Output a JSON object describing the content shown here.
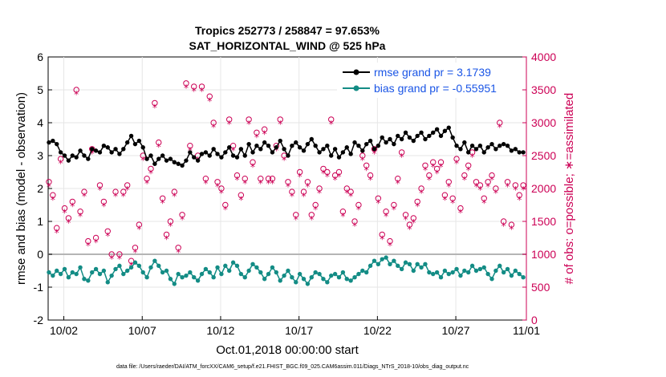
{
  "chart_data": {
    "type": "line",
    "title": "Tropics 252773 / 258847 = 97.653%",
    "subtitle": "SAT_HORIZONTAL_WIND @ 525 hPa",
    "xlabel": "Oct.01,2018 00:00:00 start",
    "ylabel": "rmse and bias (model - observation)",
    "ylabel_right": "# of obs: o=possible; ∗=assimilated",
    "xlim": [
      0.5,
      31.0
    ],
    "ylim": [
      -2,
      6
    ],
    "ylim_right": [
      0,
      4000
    ],
    "x_ticks": [
      1.5,
      6.5,
      11.5,
      16.5,
      21.5,
      26.5,
      31.0
    ],
    "x_tick_labels": [
      "10/02",
      "10/07",
      "10/12",
      "10/17",
      "10/22",
      "10/27",
      "11/01"
    ],
    "y_ticks": [
      "-2",
      "-1",
      "0",
      "1",
      "2",
      "3",
      "4",
      "5",
      "6"
    ],
    "y_ticks_right": [
      "0",
      "500",
      "1000",
      "1500",
      "2000",
      "2500",
      "3000",
      "3500",
      "4000"
    ],
    "zero_line": 0,
    "footer": "data file: /Users/raeder/DAI/ATM_forcXX/CAM6_setup/f.e21.FHIST_BGC.f09_025.CAM6assim.011/Diags_NTrS_2018-10/obs_diag_output.nc",
    "series": [
      {
        "name": "rmse",
        "legend": "rmse grand pr = 3.1739",
        "color": "#000000",
        "marker": "dot",
        "x": [
          0.55,
          0.8,
          1.05,
          1.3,
          1.55,
          1.8,
          2.05,
          2.3,
          2.55,
          2.8,
          3.05,
          3.3,
          3.55,
          3.8,
          4.05,
          4.3,
          4.55,
          4.8,
          5.05,
          5.3,
          5.55,
          5.8,
          6.05,
          6.3,
          6.55,
          6.8,
          7.05,
          7.3,
          7.55,
          7.8,
          8.05,
          8.3,
          8.55,
          8.8,
          9.05,
          9.3,
          9.55,
          9.8,
          10.05,
          10.3,
          10.55,
          10.8,
          11.05,
          11.3,
          11.55,
          11.8,
          12.05,
          12.3,
          12.55,
          12.8,
          13.05,
          13.3,
          13.55,
          13.8,
          14.05,
          14.3,
          14.55,
          14.8,
          15.05,
          15.3,
          15.55,
          15.8,
          16.05,
          16.3,
          16.55,
          16.8,
          17.05,
          17.3,
          17.55,
          17.8,
          18.05,
          18.3,
          18.55,
          18.8,
          19.05,
          19.3,
          19.55,
          19.8,
          20.05,
          20.3,
          20.55,
          20.8,
          21.05,
          21.3,
          21.55,
          21.8,
          22.05,
          22.3,
          22.55,
          22.8,
          23.05,
          23.3,
          23.55,
          23.8,
          24.05,
          24.3,
          24.55,
          24.8,
          25.05,
          25.3,
          25.55,
          25.8,
          26.05,
          26.3,
          26.55,
          26.8,
          27.05,
          27.3,
          27.55,
          27.8,
          28.05,
          28.3,
          28.55,
          28.8,
          29.05,
          29.3,
          29.55,
          29.8,
          30.05,
          30.3,
          30.55,
          30.8
        ],
        "values": [
          3.4,
          3.45,
          3.35,
          3.1,
          3.0,
          2.85,
          3.0,
          2.95,
          3.15,
          3.0,
          2.9,
          3.2,
          3.15,
          3.1,
          3.3,
          3.25,
          3.1,
          3.2,
          3.05,
          3.2,
          3.4,
          3.6,
          3.35,
          3.45,
          3.25,
          2.9,
          3.0,
          2.75,
          2.9,
          3.0,
          2.85,
          2.9,
          2.8,
          2.75,
          2.7,
          2.85,
          3.1,
          2.95,
          2.85,
          3.05,
          3.1,
          3.0,
          3.2,
          3.05,
          2.95,
          3.1,
          3.25,
          3.0,
          2.95,
          3.2,
          3.0,
          3.35,
          3.1,
          3.3,
          3.2,
          3.4,
          3.3,
          3.1,
          3.25,
          3.45,
          3.2,
          3.0,
          3.3,
          3.4,
          3.25,
          3.15,
          3.35,
          3.5,
          3.3,
          3.1,
          3.2,
          3.3,
          3.0,
          3.2,
          2.95,
          3.1,
          3.25,
          3.05,
          3.4,
          3.3,
          3.15,
          3.35,
          3.45,
          3.2,
          3.3,
          3.55,
          3.4,
          3.5,
          3.35,
          3.6,
          3.5,
          3.7,
          3.55,
          3.45,
          3.6,
          3.7,
          3.5,
          3.6,
          3.7,
          3.8,
          3.6,
          3.75,
          3.85,
          3.55,
          3.3,
          3.2,
          3.4,
          3.1,
          3.3,
          3.2,
          3.3,
          3.1,
          3.25,
          3.35,
          3.2,
          3.3,
          3.35,
          3.3,
          3.15,
          3.2,
          3.1,
          3.1
        ]
      },
      {
        "name": "bias",
        "legend": "bias grand pr = -0.55951",
        "color": "#138c85",
        "marker": "dot",
        "x": [
          0.55,
          0.8,
          1.05,
          1.3,
          1.55,
          1.8,
          2.05,
          2.3,
          2.55,
          2.8,
          3.05,
          3.3,
          3.55,
          3.8,
          4.05,
          4.3,
          4.55,
          4.8,
          5.05,
          5.3,
          5.55,
          5.8,
          6.05,
          6.3,
          6.55,
          6.8,
          7.05,
          7.3,
          7.55,
          7.8,
          8.05,
          8.3,
          8.55,
          8.8,
          9.05,
          9.3,
          9.55,
          9.8,
          10.05,
          10.3,
          10.55,
          10.8,
          11.05,
          11.3,
          11.55,
          11.8,
          12.05,
          12.3,
          12.55,
          12.8,
          13.05,
          13.3,
          13.55,
          13.8,
          14.05,
          14.3,
          14.55,
          14.8,
          15.05,
          15.3,
          15.55,
          15.8,
          16.05,
          16.3,
          16.55,
          16.8,
          17.05,
          17.3,
          17.55,
          17.8,
          18.05,
          18.3,
          18.55,
          18.8,
          19.05,
          19.3,
          19.55,
          19.8,
          20.05,
          20.3,
          20.55,
          20.8,
          21.05,
          21.3,
          21.55,
          21.8,
          22.05,
          22.3,
          22.55,
          22.8,
          23.05,
          23.3,
          23.55,
          23.8,
          24.05,
          24.3,
          24.55,
          24.8,
          25.05,
          25.3,
          25.55,
          25.8,
          26.05,
          26.3,
          26.55,
          26.8,
          27.05,
          27.3,
          27.55,
          27.8,
          28.05,
          28.3,
          28.55,
          28.8,
          29.05,
          29.3,
          29.55,
          29.8,
          30.05,
          30.3,
          30.55,
          30.8
        ],
        "values": [
          -0.55,
          -0.65,
          -0.5,
          -0.6,
          -0.45,
          -0.7,
          -0.55,
          -0.6,
          -0.4,
          -0.75,
          -0.8,
          -0.55,
          -0.45,
          -0.6,
          -0.5,
          -0.85,
          -0.65,
          -0.45,
          -0.35,
          -0.6,
          -0.5,
          -0.4,
          -0.25,
          -0.35,
          -0.55,
          -0.7,
          -0.4,
          -0.2,
          -0.35,
          -0.55,
          -0.5,
          -0.75,
          -0.9,
          -0.6,
          -0.7,
          -0.65,
          -0.55,
          -0.7,
          -0.8,
          -0.6,
          -0.45,
          -0.55,
          -0.7,
          -0.4,
          -0.6,
          -0.35,
          -0.5,
          -0.25,
          -0.35,
          -0.6,
          -0.7,
          -0.5,
          -0.3,
          -0.4,
          -0.55,
          -0.75,
          -0.6,
          -0.4,
          -0.55,
          -0.8,
          -0.65,
          -0.5,
          -0.7,
          -0.85,
          -0.6,
          -0.75,
          -0.9,
          -0.7,
          -0.55,
          -0.6,
          -0.75,
          -0.85,
          -0.65,
          -0.6,
          -0.7,
          -0.55,
          -0.75,
          -0.8,
          -0.7,
          -0.6,
          -0.5,
          -0.55,
          -0.35,
          -0.2,
          -0.3,
          -0.15,
          -0.1,
          -0.3,
          -0.2,
          -0.35,
          -0.45,
          -0.25,
          -0.3,
          -0.5,
          -0.3,
          -0.4,
          -0.3,
          -0.55,
          -0.6,
          -0.55,
          -0.7,
          -0.5,
          -0.6,
          -0.55,
          -0.45,
          -0.65,
          -0.5,
          -0.55,
          -0.35,
          -0.5,
          -0.45,
          -0.4,
          -0.6,
          -0.75,
          -0.5,
          -0.35,
          -0.55,
          -0.45,
          -0.65,
          -0.5,
          -0.6,
          -0.7
        ]
      },
      {
        "name": "obs possible",
        "color": "#cc0055",
        "marker": "o",
        "axis": "right",
        "x": [
          0.55,
          0.8,
          1.05,
          1.3,
          1.55,
          1.8,
          2.05,
          2.3,
          2.55,
          2.8,
          3.05,
          3.3,
          3.55,
          3.8,
          4.05,
          4.3,
          4.55,
          4.8,
          5.05,
          5.3,
          5.55,
          5.8,
          6.05,
          6.3,
          6.55,
          6.8,
          7.05,
          7.3,
          7.55,
          7.8,
          8.05,
          8.3,
          8.55,
          8.8,
          9.05,
          9.3,
          9.55,
          9.8,
          10.05,
          10.3,
          10.55,
          10.8,
          11.05,
          11.3,
          11.55,
          11.8,
          12.05,
          12.3,
          12.55,
          12.8,
          13.05,
          13.3,
          13.55,
          13.8,
          14.05,
          14.3,
          14.55,
          14.8,
          15.05,
          15.3,
          15.55,
          15.8,
          16.05,
          16.3,
          16.55,
          16.8,
          17.05,
          17.3,
          17.55,
          17.8,
          18.05,
          18.3,
          18.55,
          18.8,
          19.05,
          19.3,
          19.55,
          19.8,
          20.05,
          20.3,
          20.55,
          20.8,
          21.05,
          21.3,
          21.55,
          21.8,
          22.05,
          22.3,
          22.55,
          22.8,
          23.05,
          23.3,
          23.55,
          23.8,
          24.05,
          24.3,
          24.55,
          24.8,
          25.05,
          25.3,
          25.55,
          25.8,
          26.05,
          26.3,
          26.55,
          26.8,
          27.05,
          27.3,
          27.55,
          27.8,
          28.05,
          28.3,
          28.55,
          28.8,
          29.05,
          29.3,
          29.55,
          29.8,
          30.05,
          30.3,
          30.55,
          30.8
        ],
        "values": [
          2100,
          1900,
          1400,
          2450,
          1700,
          1550,
          1800,
          3500,
          1650,
          1950,
          1200,
          2600,
          1250,
          2050,
          1800,
          1350,
          1000,
          1950,
          1000,
          1950,
          2050,
          900,
          1100,
          1450,
          2500,
          2150,
          2300,
          3300,
          2700,
          1850,
          1300,
          1500,
          1950,
          1100,
          1600,
          3600,
          2650,
          3550,
          2500,
          3550,
          2150,
          3400,
          3000,
          2100,
          2000,
          1750,
          3050,
          2650,
          2200,
          1900,
          2150,
          3050,
          2400,
          2850,
          2150,
          2900,
          2150,
          2150,
          2650,
          3050,
          2500,
          2100,
          1950,
          1600,
          2250,
          1950,
          2100,
          1600,
          1750,
          2000,
          2300,
          2250,
          3050,
          2200,
          2250,
          1650,
          2000,
          1950,
          1500,
          1750,
          2500,
          2350,
          2200,
          2600,
          1850,
          1300,
          1650,
          1200,
          1750,
          2150,
          2550,
          1600,
          1450,
          1550,
          1800,
          2000,
          2350,
          2200,
          2400,
          2300,
          2400,
          1900,
          2100,
          1850,
          2450,
          1700,
          2200,
          2350,
          2550,
          2100,
          2050,
          1850,
          2100,
          2200,
          2000,
          3000,
          1500,
          2100,
          1450,
          2050,
          1900,
          2050
        ]
      },
      {
        "name": "obs assimilated",
        "color": "#cc0055",
        "marker": "*",
        "axis": "right",
        "x": [
          0.55,
          0.8,
          1.05,
          1.3,
          1.55,
          1.8,
          2.05,
          2.3,
          2.55,
          2.8,
          3.05,
          3.3,
          3.55,
          3.8,
          4.05,
          4.3,
          4.55,
          4.8,
          5.05,
          5.3,
          5.55,
          5.8,
          6.05,
          6.3,
          6.55,
          6.8,
          7.05,
          7.3,
          7.55,
          7.8,
          8.05,
          8.3,
          8.55,
          8.8,
          9.05,
          9.3,
          9.55,
          9.8,
          10.05,
          10.3,
          10.55,
          10.8,
          11.05,
          11.3,
          11.55,
          11.8,
          12.05,
          12.3,
          12.55,
          12.8,
          13.05,
          13.3,
          13.55,
          13.8,
          14.05,
          14.3,
          14.55,
          14.8,
          15.05,
          15.3,
          15.55,
          15.8,
          16.05,
          16.3,
          16.55,
          16.8,
          17.05,
          17.3,
          17.55,
          17.8,
          18.05,
          18.3,
          18.55,
          18.8,
          19.05,
          19.3,
          19.55,
          19.8,
          20.05,
          20.3,
          20.55,
          20.8,
          21.05,
          21.3,
          21.55,
          21.8,
          22.05,
          22.3,
          22.55,
          22.8,
          23.05,
          23.3,
          23.55,
          23.8,
          24.05,
          24.3,
          24.55,
          24.8,
          25.05,
          25.3,
          25.55,
          25.8,
          26.05,
          26.3,
          26.55,
          26.8,
          27.05,
          27.3,
          27.55,
          27.8,
          28.05,
          28.3,
          28.55,
          28.8,
          29.05,
          29.3,
          29.55,
          29.8,
          30.05,
          30.3,
          30.55,
          30.8
        ],
        "values": [
          2050,
          1850,
          1350,
          2400,
          1650,
          1500,
          1750,
          3450,
          1600,
          1900,
          1150,
          2550,
          1200,
          2000,
          1750,
          1300,
          950,
          1900,
          950,
          1900,
          2000,
          850,
          1050,
          1400,
          2450,
          2100,
          2250,
          3250,
          2650,
          1800,
          1250,
          1450,
          1900,
          1050,
          1550,
          3550,
          2600,
          3500,
          2450,
          3500,
          2100,
          3350,
          2950,
          2050,
          1950,
          1700,
          3000,
          2600,
          2150,
          1850,
          2100,
          3000,
          2350,
          2800,
          2100,
          2850,
          2100,
          2100,
          2600,
          3000,
          2450,
          2050,
          1900,
          1550,
          2200,
          1900,
          2050,
          1550,
          1700,
          1950,
          2250,
          2200,
          3000,
          2150,
          2200,
          1600,
          1950,
          1900,
          1450,
          1700,
          2450,
          2300,
          2150,
          2550,
          1800,
          1250,
          1600,
          1150,
          1700,
          2100,
          2500,
          1550,
          1400,
          1500,
          1750,
          1950,
          2300,
          2150,
          2350,
          2250,
          2350,
          1850,
          2050,
          1800,
          2400,
          1650,
          2150,
          2300,
          2500,
          2050,
          2000,
          1800,
          2050,
          2150,
          1950,
          2950,
          1450,
          2050,
          1400,
          2000,
          1850,
          2000
        ]
      }
    ]
  }
}
